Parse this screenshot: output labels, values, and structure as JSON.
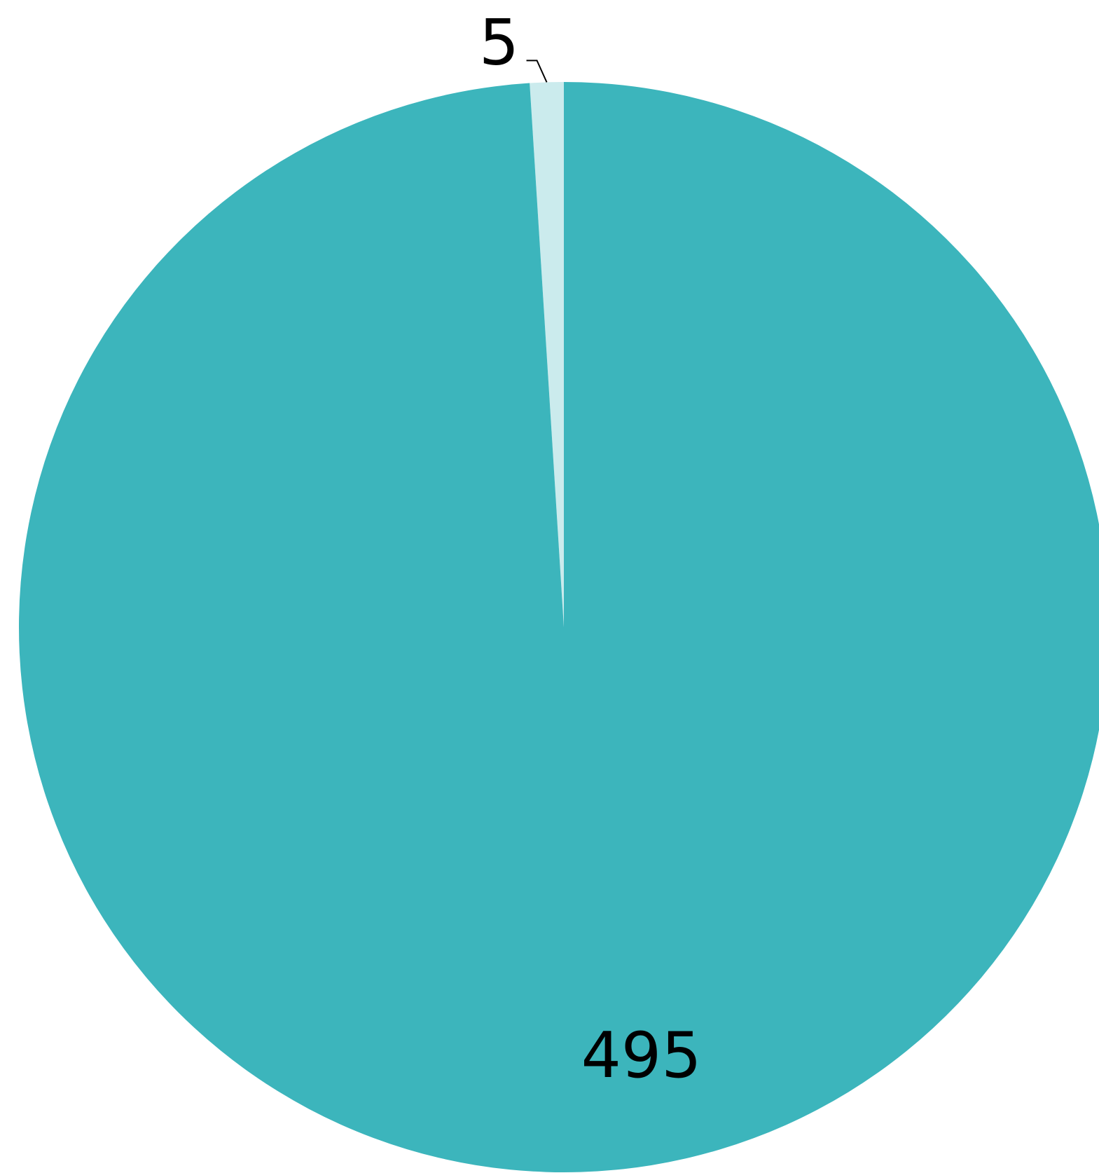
{
  "chart_data": {
    "type": "pie",
    "title": "",
    "categories": [
      "",
      ""
    ],
    "values": [
      5,
      495
    ],
    "data_labels": [
      "5",
      "495"
    ],
    "colors": [
      "#cbebed",
      "#3cb5bc"
    ],
    "start_angle_deg": 0,
    "direction": "counterclockwise",
    "legend": "none"
  }
}
